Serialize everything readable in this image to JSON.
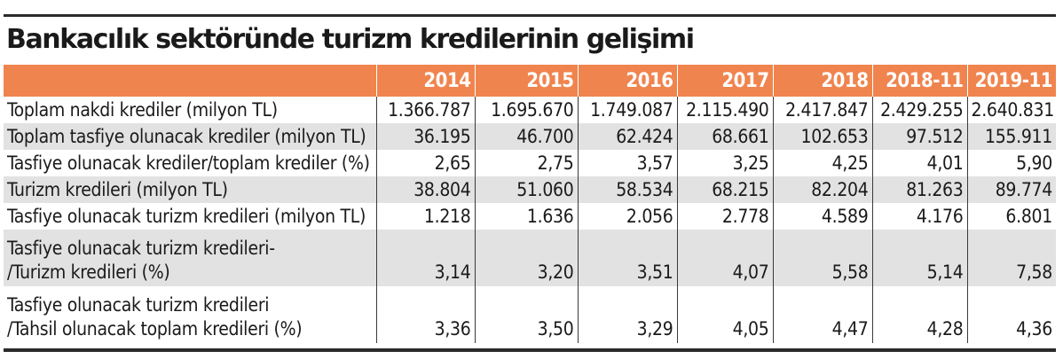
{
  "title": "Bankacılık sektöründe turizm kredilerinin gelişimi",
  "table": {
    "columns": [
      "",
      "2014",
      "2015",
      "2016",
      "2017",
      "2018",
      "2018-11",
      "2019-11"
    ],
    "rows": [
      {
        "label": "Toplam nakdi krediler (milyon TL)",
        "values": [
          "1.366.787",
          "1.695.670",
          "1.749.087",
          "2.115.490",
          "2.417.847",
          "2.429.255",
          "2.640.831"
        ]
      },
      {
        "label": "Toplam tasfiye olunacak krediler (milyon TL)",
        "values": [
          "36.195",
          "46.700",
          "62.424",
          "68.661",
          "102.653",
          "97.512",
          "155.911"
        ]
      },
      {
        "label": "Tasfiye olunacak krediler/toplam krediler (%)",
        "values": [
          "2,65",
          "2,75",
          "3,57",
          "3,25",
          "4,25",
          "4,01",
          "5,90"
        ]
      },
      {
        "label": "Turizm kredileri (milyon TL)",
        "values": [
          "38.804",
          "51.060",
          "58.534",
          "68.215",
          "82.204",
          "81.263",
          "89.774"
        ]
      },
      {
        "label": "Tasfiye olunacak turizm kredileri (milyon TL)",
        "values": [
          "1.218",
          "1.636",
          "2.056",
          "2.778",
          "4.589",
          "4.176",
          "6.801"
        ]
      },
      {
        "label_line1": "Tasfiye olunacak turizm kredileri-",
        "label_line2": "/Turizm kredileri (%)",
        "values": [
          "3,14",
          "3,20",
          "3,51",
          "4,07",
          "5,58",
          "5,14",
          "7,58"
        ]
      },
      {
        "label_line1": "Tasfiye olunacak turizm kredileri",
        "label_line2": "/Tahsil olunacak toplam kredileri (%)",
        "values": [
          "3,36",
          "3,50",
          "3,29",
          "4,05",
          "4,47",
          "4,28",
          "4,36"
        ]
      }
    ]
  },
  "colors": {
    "header_bg": "#f0844e",
    "header_text": "#ffffff",
    "stripe_bg": "#e2e2e2",
    "rule": "#2a2a2a"
  }
}
